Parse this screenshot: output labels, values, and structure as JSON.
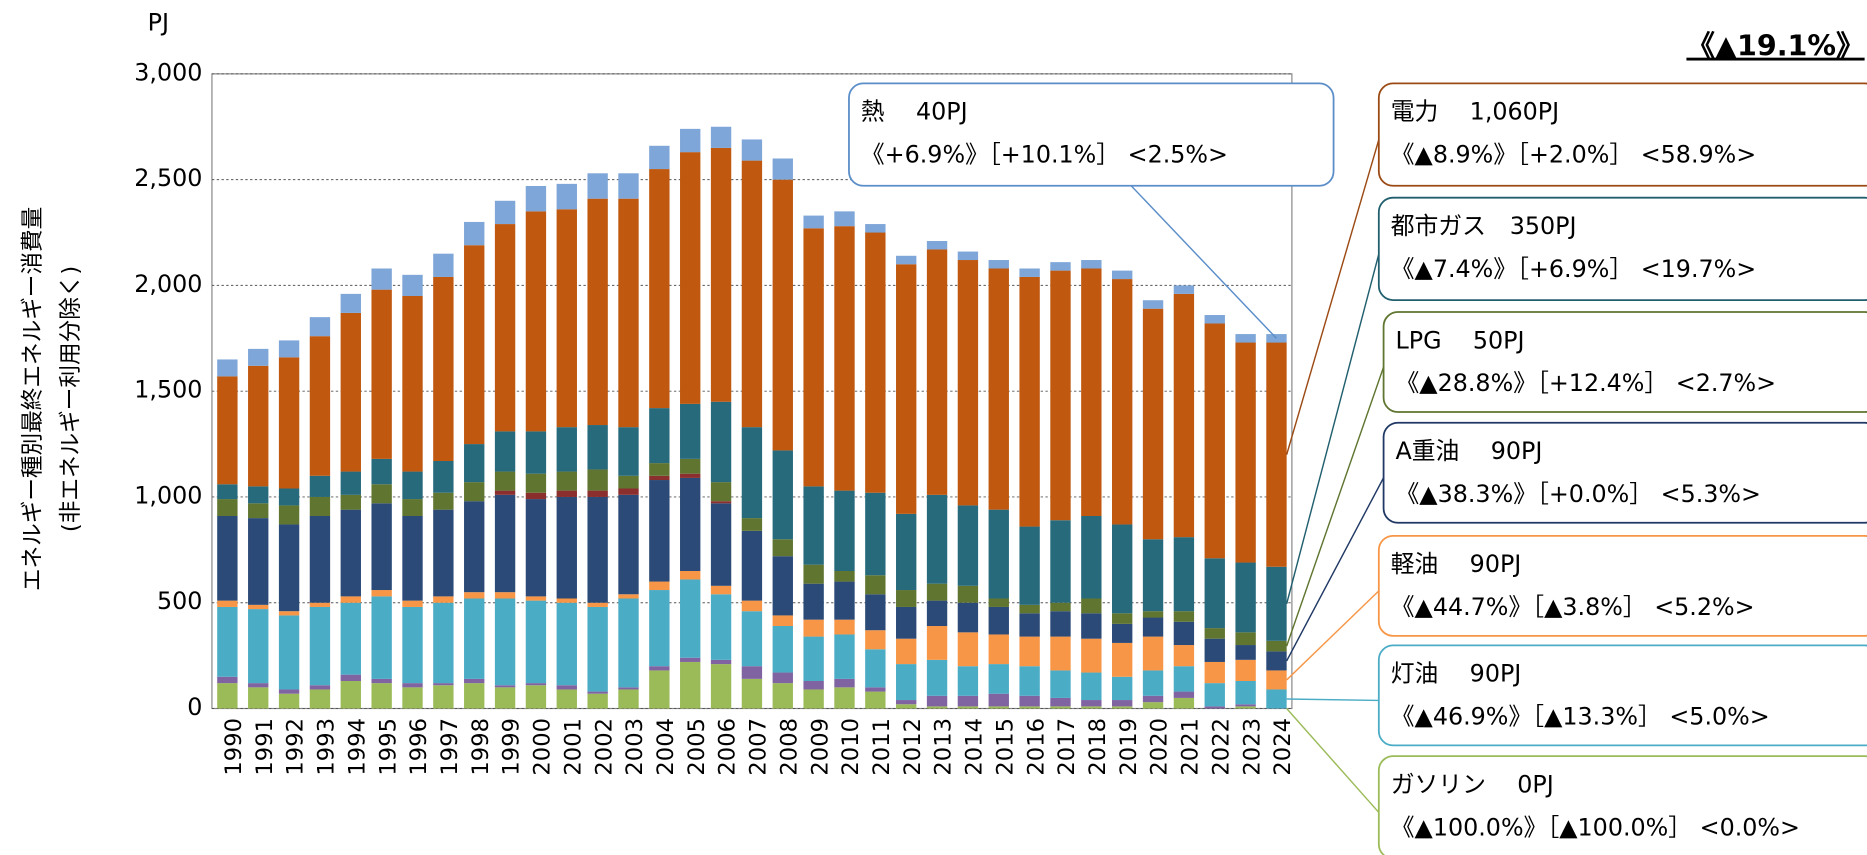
{
  "chart_data": {
    "type": "stacked-bar",
    "y_unit": "PJ",
    "y_label": [
      "エネルギー種別最終エネルギー消費量",
      "(非エネルギー利用分除く)"
    ],
    "headline": "《▲19.1%》",
    "categories": [
      "1990",
      "1991",
      "1992",
      "1993",
      "1994",
      "1995",
      "1996",
      "1997",
      "1998",
      "1999",
      "2000",
      "2001",
      "2002",
      "2003",
      "2004",
      "2005",
      "2006",
      "2007",
      "2008",
      "2009",
      "2010",
      "2011",
      "2012",
      "2013",
      "2014",
      "2015",
      "2016",
      "2017",
      "2018",
      "2019",
      "2020",
      "2021",
      "2022",
      "2023",
      "2024"
    ],
    "ylim": [
      0,
      3000
    ],
    "yticks": [
      0,
      {
        "value": 500,
        "label": "500"
      },
      {
        "value": 1000,
        "label": "1,000"
      },
      {
        "value": 1500,
        "label": "1,500"
      },
      {
        "value": 2000,
        "label": "2,000"
      },
      {
        "value": 2500,
        "label": "2,500"
      },
      {
        "value": 3000,
        "label": "3,000"
      }
    ],
    "grid": true,
    "series": [
      {
        "color": "#9bbb59",
        "values": [
          120,
          100,
          70,
          90,
          130,
          120,
          100,
          110,
          120,
          100,
          110,
          90,
          70,
          90,
          180,
          220,
          210,
          140,
          120,
          90,
          100,
          80,
          20,
          10,
          10,
          10,
          10,
          10,
          10,
          10,
          30,
          50,
          0,
          10,
          0
        ]
      },
      {
        "color": "#8064a2",
        "values": [
          30,
          20,
          20,
          20,
          30,
          20,
          20,
          10,
          20,
          10,
          10,
          20,
          10,
          10,
          20,
          20,
          20,
          60,
          50,
          40,
          40,
          20,
          20,
          50,
          50,
          60,
          50,
          40,
          30,
          30,
          30,
          30,
          10,
          10,
          0
        ]
      },
      {
        "color": "#4bacc6",
        "values": [
          330,
          350,
          350,
          370,
          340,
          390,
          360,
          380,
          380,
          410,
          390,
          390,
          400,
          420,
          360,
          370,
          310,
          260,
          220,
          210,
          210,
          180,
          170,
          170,
          140,
          140,
          140,
          130,
          130,
          110,
          120,
          120,
          110,
          110,
          90
        ]
      },
      {
        "color": "#f79646",
        "values": [
          30,
          20,
          20,
          20,
          30,
          30,
          30,
          30,
          30,
          30,
          20,
          20,
          20,
          20,
          40,
          40,
          40,
          50,
          50,
          80,
          70,
          90,
          120,
          160,
          160,
          140,
          140,
          160,
          160,
          160,
          160,
          100,
          100,
          100,
          90
        ]
      },
      {
        "color": "#2b4a77",
        "values": [
          400,
          410,
          410,
          410,
          410,
          410,
          400,
          410,
          430,
          460,
          460,
          480,
          500,
          470,
          480,
          440,
          390,
          330,
          280,
          170,
          180,
          170,
          150,
          120,
          140,
          130,
          110,
          120,
          120,
          90,
          90,
          110,
          110,
          70,
          90
        ]
      },
      {
        "color": "#8b2e2e",
        "values": [
          0,
          0,
          0,
          0,
          0,
          0,
          0,
          0,
          0,
          20,
          30,
          30,
          30,
          30,
          20,
          20,
          10,
          0,
          0,
          0,
          0,
          0,
          0,
          0,
          0,
          0,
          0,
          0,
          0,
          0,
          0,
          0,
          0,
          0,
          0
        ]
      },
      {
        "color": "#5f7530",
        "values": [
          80,
          70,
          90,
          90,
          70,
          90,
          80,
          80,
          90,
          90,
          90,
          90,
          100,
          60,
          60,
          70,
          90,
          60,
          80,
          90,
          50,
          90,
          80,
          80,
          80,
          40,
          40,
          40,
          70,
          50,
          30,
          50,
          50,
          60,
          50
        ]
      },
      {
        "color": "#276a7c",
        "values": [
          70,
          80,
          80,
          100,
          110,
          120,
          130,
          150,
          180,
          190,
          200,
          210,
          210,
          230,
          260,
          260,
          380,
          430,
          420,
          370,
          380,
          390,
          360,
          420,
          380,
          420,
          370,
          390,
          390,
          420,
          340,
          350,
          330,
          330,
          350
        ]
      },
      {
        "color": "#c0580f",
        "values": [
          510,
          570,
          620,
          660,
          750,
          800,
          830,
          870,
          940,
          980,
          1040,
          1030,
          1070,
          1080,
          1130,
          1190,
          1200,
          1260,
          1280,
          1220,
          1250,
          1230,
          1180,
          1160,
          1160,
          1140,
          1180,
          1180,
          1170,
          1160,
          1090,
          1150,
          1110,
          1040,
          1060
        ]
      },
      {
        "color": "#7ea6d8",
        "values": [
          80,
          80,
          80,
          90,
          90,
          100,
          100,
          110,
          110,
          110,
          120,
          120,
          120,
          120,
          110,
          110,
          100,
          100,
          100,
          60,
          70,
          40,
          40,
          40,
          40,
          40,
          40,
          40,
          40,
          40,
          40,
          40,
          40,
          40,
          40
        ]
      }
    ],
    "annotations": [
      {
        "color": "#5b8ec9",
        "lines": [
          "熱　 40PJ",
          "《+6.9%》［+10.1%］ <2.5%>"
        ]
      },
      {
        "color": "#9c4a14",
        "lines": [
          "電力　 1,060PJ",
          "《▲8.9%》［+2.0%］ <58.9%>"
        ]
      },
      {
        "color": "#215f6e",
        "lines": [
          "都市ガス　350PJ",
          "《▲7.4%》［+6.9%］ <19.7%>"
        ]
      },
      {
        "color": "#5f7530",
        "lines": [
          "LPG　 50PJ",
          "《▲28.8%》［+12.4%］ <2.7%>"
        ]
      },
      {
        "color": "#1f3864",
        "lines": [
          "A重油　 90PJ",
          "《▲38.3%》［+0.0%］ <5.3%>"
        ]
      },
      {
        "color": "#f79646",
        "lines": [
          "軽油　 90PJ",
          "《▲44.7%》［▲3.8%］ <5.2%>"
        ]
      },
      {
        "color": "#4bacc6",
        "lines": [
          "灯油　 90PJ",
          "《▲46.9%》［▲13.3%］ <5.0%>"
        ]
      },
      {
        "color": "#9bbb59",
        "lines": [
          "ガソリン　 0PJ",
          "《▲100.0%》［▲100.0%］ <0.0%>"
        ]
      }
    ]
  }
}
